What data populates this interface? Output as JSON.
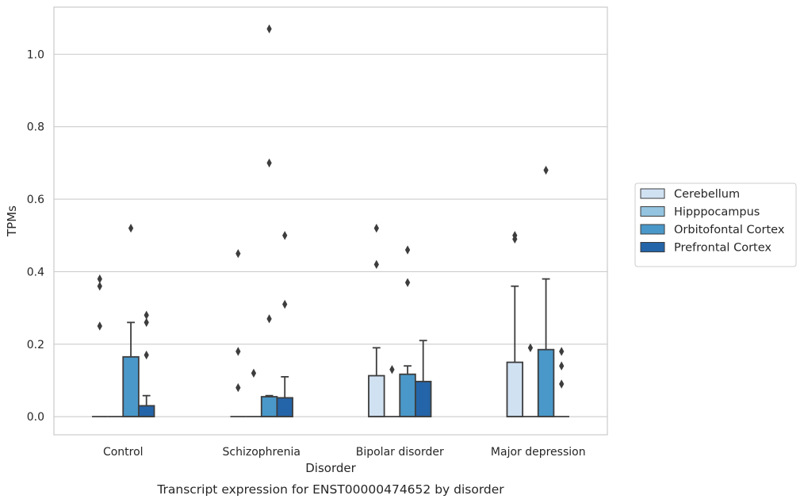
{
  "chart_data": {
    "type": "box",
    "caption": "Transcript expression for ENST00000474652 by disorder",
    "xlabel": "Disorder",
    "ylabel": "TPMs",
    "ylim": [
      -0.05,
      1.13
    ],
    "yticks": [
      0.0,
      0.2,
      0.4,
      0.6,
      0.8,
      1.0
    ],
    "ytick_labels": [
      "0.0",
      "0.2",
      "0.4",
      "0.6",
      "0.8",
      "1.0"
    ],
    "grid": "horizontal",
    "legend_position": "right",
    "categories": [
      "Control",
      "Schizophrenia",
      "Bipolar disorder",
      "Major depression"
    ],
    "series": [
      {
        "name": "Cerebellum",
        "color": "#d0e1f2",
        "boxes": [
          {
            "q1": 0,
            "median": 0,
            "q3": 0,
            "whislo": 0,
            "whishi": 0,
            "fliers": [
              0.25,
              0.36,
              0.38
            ]
          },
          {
            "q1": 0,
            "median": 0,
            "q3": 0,
            "whislo": 0,
            "whishi": 0,
            "fliers": [
              0.08,
              0.18,
              0.45
            ]
          },
          {
            "q1": 0,
            "median": 0,
            "q3": 0.113,
            "whislo": 0,
            "whishi": 0.19,
            "fliers": [
              0.42,
              0.52
            ]
          },
          {
            "q1": 0,
            "median": 0,
            "q3": 0.15,
            "whislo": 0,
            "whishi": 0.36,
            "fliers": [
              0.49,
              0.5
            ]
          }
        ]
      },
      {
        "name": "Hipppocampus",
        "color": "#94c4df",
        "boxes": [
          {
            "q1": 0,
            "median": 0,
            "q3": 0,
            "whislo": 0,
            "whishi": 0,
            "fliers": []
          },
          {
            "q1": 0,
            "median": 0,
            "q3": 0,
            "whislo": 0,
            "whishi": 0,
            "fliers": [
              0.12
            ]
          },
          {
            "q1": 0,
            "median": 0,
            "q3": 0,
            "whislo": 0,
            "whishi": 0,
            "fliers": [
              0.13
            ]
          },
          {
            "q1": 0,
            "median": 0,
            "q3": 0,
            "whislo": 0,
            "whishi": 0,
            "fliers": [
              0.19
            ]
          }
        ]
      },
      {
        "name": "Orbitofontal Cortex",
        "color": "#4a98c9",
        "boxes": [
          {
            "q1": 0,
            "median": 0,
            "q3": 0.165,
            "whislo": 0,
            "whishi": 0.26,
            "fliers": [
              0.52
            ]
          },
          {
            "q1": 0,
            "median": 0,
            "q3": 0.055,
            "whislo": 0,
            "whishi": 0.058,
            "fliers": [
              0.27,
              0.7,
              1.07
            ]
          },
          {
            "q1": 0,
            "median": 0,
            "q3": 0.117,
            "whislo": 0,
            "whishi": 0.14,
            "fliers": [
              0.37,
              0.46
            ]
          },
          {
            "q1": 0,
            "median": 0,
            "q3": 0.185,
            "whislo": 0,
            "whishi": 0.38,
            "fliers": [
              0.68
            ]
          }
        ]
      },
      {
        "name": "Prefrontal Cortex",
        "color": "#2464a8",
        "boxes": [
          {
            "q1": 0,
            "median": 0,
            "q3": 0.03,
            "whislo": 0,
            "whishi": 0.058,
            "fliers": [
              0.17,
              0.26,
              0.28
            ]
          },
          {
            "q1": 0,
            "median": 0,
            "q3": 0.052,
            "whislo": 0,
            "whishi": 0.11,
            "fliers": [
              0.31,
              0.5
            ]
          },
          {
            "q1": 0,
            "median": 0,
            "q3": 0.097,
            "whislo": 0,
            "whishi": 0.21,
            "fliers": []
          },
          {
            "q1": 0,
            "median": 0,
            "q3": 0,
            "whislo": 0,
            "whishi": 0,
            "fliers": [
              0.09,
              0.14,
              0.18
            ]
          }
        ]
      }
    ]
  }
}
